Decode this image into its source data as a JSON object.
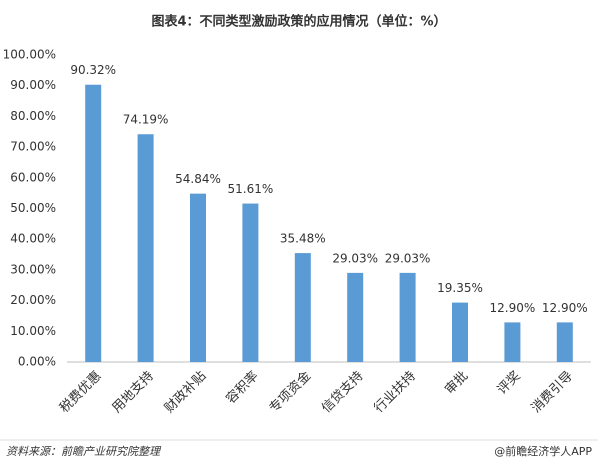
{
  "chart_data": {
    "type": "bar",
    "title": "图表4：不同类型激励政策的应用情况（单位：%）",
    "categories": [
      "税费优惠",
      "用地支持",
      "财政补贴",
      "容积率",
      "专项资金",
      "信贷支持",
      "行业扶持",
      "审批",
      "评奖",
      "消费引导"
    ],
    "values": [
      90.32,
      74.19,
      54.84,
      51.61,
      35.48,
      29.03,
      29.03,
      19.35,
      12.9,
      12.9
    ],
    "value_labels": [
      "90.32%",
      "74.19%",
      "54.84%",
      "51.61%",
      "35.48%",
      "29.03%",
      "29.03%",
      "19.35%",
      "12.90%",
      "12.90%"
    ],
    "color": "#5b9bd5",
    "ylim": [
      0,
      100
    ],
    "yticks": [
      {
        "value": 0,
        "label": "0.00%"
      },
      {
        "value": 10,
        "label": "10.00%"
      },
      {
        "value": 20,
        "label": "20.00%"
      },
      {
        "value": 30,
        "label": "30.00%"
      },
      {
        "value": 40,
        "label": "40.00%"
      },
      {
        "value": 50,
        "label": "50.00%"
      },
      {
        "value": 60,
        "label": "60.00%"
      },
      {
        "value": 70,
        "label": "70.00%"
      },
      {
        "value": 80,
        "label": "80.00%"
      },
      {
        "value": 90,
        "label": "90.00%"
      },
      {
        "value": 100,
        "label": "100.00%"
      }
    ],
    "grid": false,
    "source": "资料来源：前瞻产业研究院整理",
    "credit": "@前瞻经济学人APP"
  }
}
